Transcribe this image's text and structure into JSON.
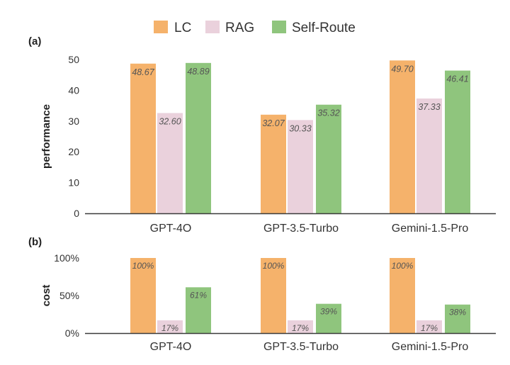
{
  "legend": {
    "items": [
      {
        "label": "LC",
        "color": "#f5b26b"
      },
      {
        "label": "RAG",
        "color": "#ead1dc"
      },
      {
        "label": "Self-Route",
        "color": "#8fc57d"
      }
    ]
  },
  "colors": {
    "LC": "#f5b26b",
    "RAG": "#ead1dc",
    "SelfRoute": "#8fc57d",
    "axis": "#3a3a3a",
    "text": "#333333",
    "label": "#555555"
  },
  "chart_data": [
    {
      "panel": "(a)",
      "type": "bar",
      "ylabel": "performance",
      "xlabel": "",
      "categories": [
        "GPT-4O",
        "GPT-3.5-Turbo",
        "Gemini-1.5-Pro"
      ],
      "ylim": [
        0,
        50
      ],
      "yticks": [
        "0",
        "10",
        "20",
        "30",
        "40",
        "50"
      ],
      "grid": false,
      "legend_position": "top-center",
      "series": [
        {
          "name": "LC",
          "values": [
            48.67,
            32.07,
            49.7
          ],
          "labels": [
            "48.67",
            "32.07",
            "49.70"
          ]
        },
        {
          "name": "RAG",
          "values": [
            32.6,
            30.33,
            37.33
          ],
          "labels": [
            "32.60",
            "30.33",
            "37.33"
          ]
        },
        {
          "name": "Self-Route",
          "values": [
            48.89,
            35.32,
            46.41
          ],
          "labels": [
            "48.89",
            "35.32",
            "46.41"
          ]
        }
      ]
    },
    {
      "panel": "(b)",
      "type": "bar",
      "ylabel": "cost",
      "xlabel": "",
      "categories": [
        "GPT-4O",
        "GPT-3.5-Turbo",
        "Gemini-1.5-Pro"
      ],
      "ylim": [
        0,
        100
      ],
      "yticks": [
        "0%",
        "50%",
        "100%"
      ],
      "grid": false,
      "series": [
        {
          "name": "LC",
          "values": [
            100,
            100,
            100
          ],
          "labels": [
            "100%",
            "100%",
            "100%"
          ]
        },
        {
          "name": "RAG",
          "values": [
            17,
            17,
            17
          ],
          "labels": [
            "17%",
            "17%",
            "17%"
          ]
        },
        {
          "name": "Self-Route",
          "values": [
            61,
            39,
            38
          ],
          "labels": [
            "61%",
            "39%",
            "38%"
          ]
        }
      ]
    }
  ]
}
